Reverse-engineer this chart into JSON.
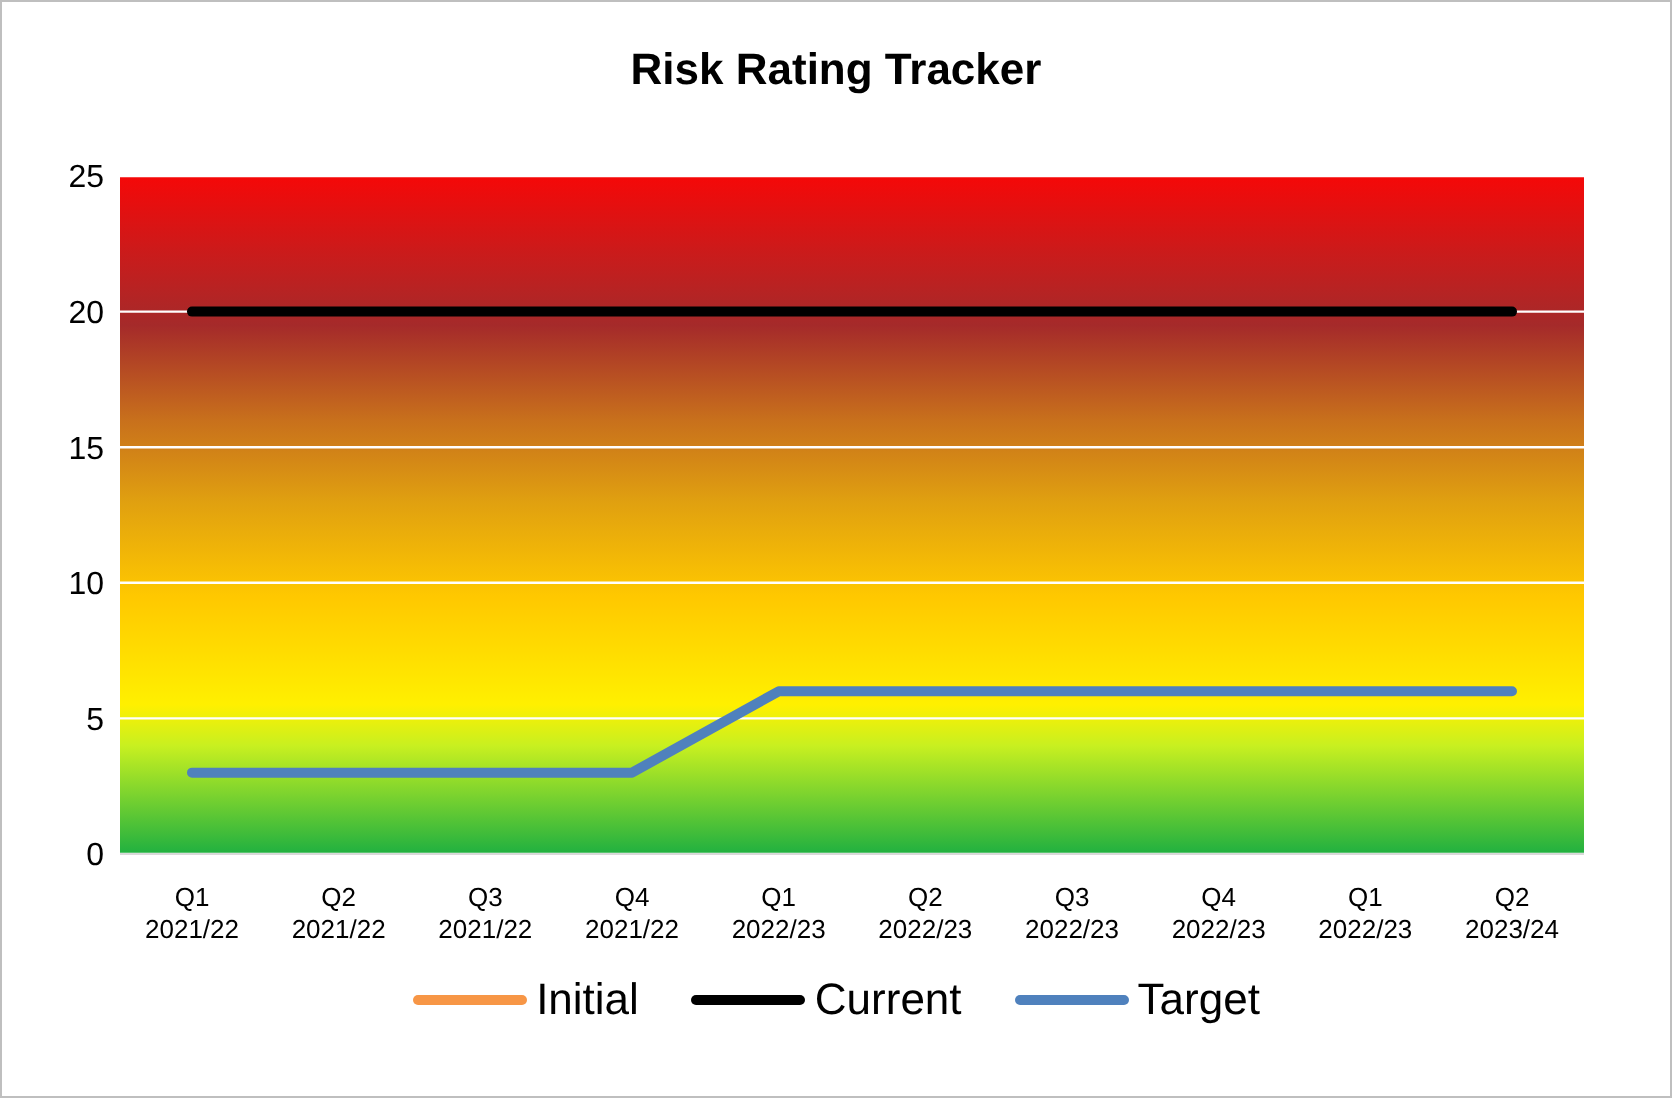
{
  "chart_data": {
    "type": "line",
    "title": "Risk Rating Tracker",
    "categories": [
      "Q1 2021/22",
      "Q2 2021/22",
      "Q3 2021/22",
      "Q4 2021/22",
      "Q1 2022/23",
      "Q2 2022/23",
      "Q3 2022/23",
      "Q4 2022/23",
      "Q1 2022/23",
      "Q2 2023/24"
    ],
    "series": [
      {
        "name": "Initial",
        "color": "#f79646",
        "values": [
          null,
          null,
          null,
          null,
          null,
          null,
          null,
          null,
          null,
          null
        ]
      },
      {
        "name": "Current",
        "color": "#000000",
        "values": [
          20,
          20,
          20,
          20,
          20,
          20,
          20,
          20,
          20,
          20
        ]
      },
      {
        "name": "Target",
        "color": "#4f81bd",
        "values": [
          3,
          3,
          3,
          3,
          6,
          6,
          6,
          6,
          6,
          6
        ]
      }
    ],
    "ylim": [
      0,
      25
    ],
    "yticks": [
      0,
      5,
      10,
      15,
      20,
      25
    ],
    "grid": "y",
    "legend": "bottom",
    "marker": "none",
    "line_style": "solid"
  }
}
